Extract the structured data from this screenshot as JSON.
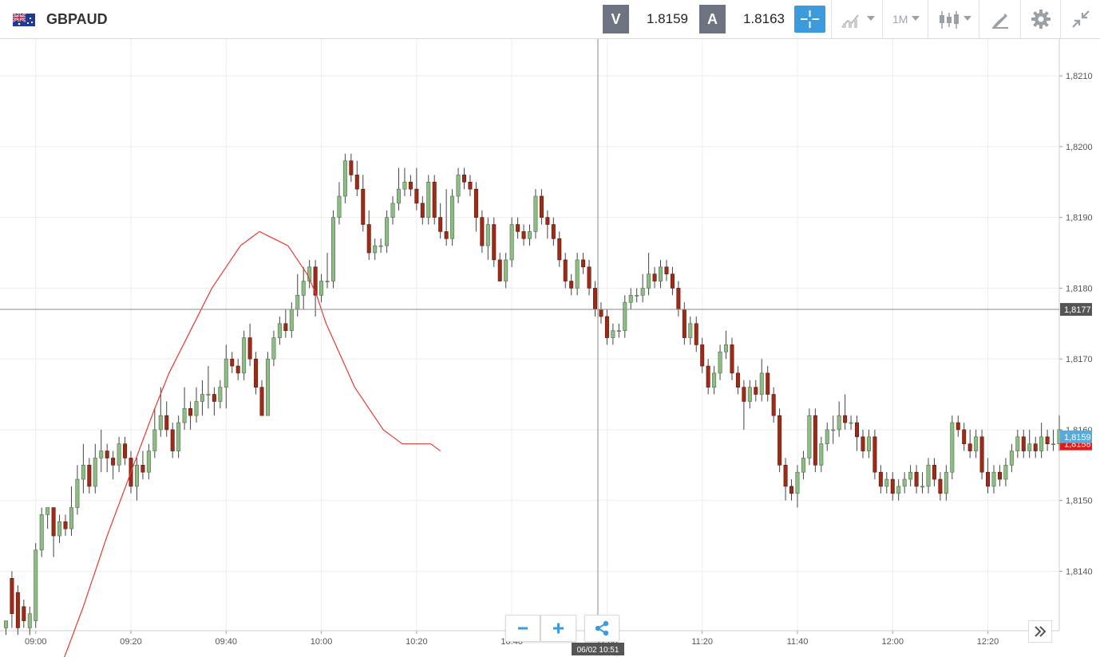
{
  "header": {
    "symbol": "GBPAUD",
    "sell_label": "V",
    "sell_price": "1.8159",
    "buy_label": "A",
    "buy_price": "1.8163",
    "timeframe": "1M"
  },
  "crosshair": {
    "price_label": "1,8177",
    "time_label": "06/02 10:51"
  },
  "chart_data": {
    "type": "candlestick",
    "symbol": "GBPAUD",
    "interval": "1 minute",
    "y_ticks": [
      "1,8140",
      "1,8150",
      "1,8160",
      "1,8170",
      "1,8180",
      "1,8190",
      "1,8200",
      "1,8210"
    ],
    "x_ticks": [
      "09:00",
      "09:20",
      "09:40",
      "10:00",
      "10:20",
      "10:40",
      "11:00",
      "11:20",
      "11:40",
      "12:00",
      "12:20"
    ],
    "ylim": [
      1.81316,
      1.82152
    ],
    "xlim_minutes": [
      -3,
      86
    ],
    "grid": true,
    "current_bid": "1,8159",
    "current_ask_marker": "1,8158",
    "colors": {
      "up": "#8dbd84",
      "down": "#9e2b17",
      "ma": "#e53935",
      "bid_tag": "#5aa9d8",
      "ask_tag": "#e01b1b",
      "cross_tag": "#555555"
    },
    "candles": [
      [
        1.8132,
        1.8133,
        1.8131,
        1.8132
      ],
      [
        1.8139,
        1.8134,
        1.814,
        1.8132
      ],
      [
        1.8137,
        1.8132,
        1.8138,
        1.8131
      ],
      [
        1.8135,
        1.8133,
        1.8136,
        1.8132
      ],
      [
        1.8132,
        1.8134,
        1.8135,
        1.8131
      ],
      [
        1.8133,
        1.8143,
        1.8144,
        1.8132
      ],
      [
        1.8143,
        1.8148,
        1.8149,
        1.8142
      ],
      [
        1.8148,
        1.8149,
        1.8149,
        1.8146
      ],
      [
        1.8149,
        1.8145,
        1.8149,
        1.8142
      ],
      [
        1.8145,
        1.8147,
        1.8148,
        1.8144
      ],
      [
        1.8147,
        1.8146,
        1.8148,
        1.8145
      ],
      [
        1.8146,
        1.8149,
        1.8152,
        1.8145
      ],
      [
        1.8149,
        1.8153,
        1.8155,
        1.8148
      ],
      [
        1.8153,
        1.8155,
        1.8158,
        1.8151
      ],
      [
        1.8155,
        1.8152,
        1.8156,
        1.8151
      ],
      [
        1.8152,
        1.8156,
        1.8158,
        1.8151
      ],
      [
        1.8156,
        1.8157,
        1.816,
        1.8154
      ],
      [
        1.8157,
        1.8156,
        1.8158,
        1.8154
      ],
      [
        1.8156,
        1.8155,
        1.8157,
        1.8153
      ],
      [
        1.8155,
        1.8158,
        1.8159,
        1.8154
      ],
      [
        1.8158,
        1.8156,
        1.8159,
        1.8155
      ],
      [
        1.8156,
        1.8152,
        1.8157,
        1.8151
      ],
      [
        1.8152,
        1.8155,
        1.8156,
        1.815
      ],
      [
        1.8155,
        1.8154,
        1.8157,
        1.8153
      ],
      [
        1.8154,
        1.8157,
        1.8158,
        1.8153
      ],
      [
        1.8157,
        1.816,
        1.8163,
        1.8156
      ],
      [
        1.816,
        1.8162,
        1.8166,
        1.8159
      ],
      [
        1.8162,
        1.816,
        1.8164,
        1.8159
      ],
      [
        1.816,
        1.8157,
        1.8161,
        1.8156
      ],
      [
        1.8157,
        1.8161,
        1.8162,
        1.8156
      ],
      [
        1.8161,
        1.8163,
        1.8166,
        1.816
      ],
      [
        1.8163,
        1.8162,
        1.8164,
        1.816
      ],
      [
        1.8162,
        1.8164,
        1.8166,
        1.8161
      ],
      [
        1.8164,
        1.8165,
        1.8167,
        1.8162
      ],
      [
        1.8165,
        1.8165,
        1.8169,
        1.8163
      ],
      [
        1.8165,
        1.8164,
        1.8166,
        1.8162
      ],
      [
        1.8164,
        1.8166,
        1.8167,
        1.8163
      ],
      [
        1.8166,
        1.817,
        1.8172,
        1.8163
      ],
      [
        1.817,
        1.8169,
        1.8171,
        1.8168
      ],
      [
        1.8169,
        1.8168,
        1.817,
        1.8167
      ],
      [
        1.8168,
        1.8173,
        1.8174,
        1.8167
      ],
      [
        1.8173,
        1.817,
        1.8175,
        1.8169
      ],
      [
        1.817,
        1.8166,
        1.8171,
        1.8165
      ],
      [
        1.8166,
        1.8162,
        1.8167,
        1.8162
      ],
      [
        1.8162,
        1.817,
        1.8171,
        1.8162
      ],
      [
        1.817,
        1.8173,
        1.8174,
        1.8169
      ],
      [
        1.8173,
        1.8175,
        1.8176,
        1.8172
      ],
      [
        1.8175,
        1.8174,
        1.8177,
        1.8173
      ],
      [
        1.8174,
        1.8177,
        1.8178,
        1.8173
      ],
      [
        1.8177,
        1.8179,
        1.8182,
        1.8176
      ],
      [
        1.8179,
        1.8181,
        1.8183,
        1.8177
      ],
      [
        1.8181,
        1.8183,
        1.8184,
        1.818
      ],
      [
        1.8183,
        1.8179,
        1.8184,
        1.8176
      ],
      [
        1.8179,
        1.8181,
        1.8182,
        1.8178
      ],
      [
        1.8181,
        1.8181,
        1.8185,
        1.818
      ],
      [
        1.8181,
        1.819,
        1.8191,
        1.818
      ],
      [
        1.819,
        1.8193,
        1.8195,
        1.8189
      ],
      [
        1.8193,
        1.8198,
        1.8199,
        1.8192
      ],
      [
        1.8198,
        1.8196,
        1.8199,
        1.8195
      ],
      [
        1.8196,
        1.8194,
        1.8198,
        1.8193
      ],
      [
        1.8194,
        1.8189,
        1.8196,
        1.8188
      ],
      [
        1.8189,
        1.8185,
        1.8191,
        1.8184
      ],
      [
        1.8185,
        1.8186,
        1.8187,
        1.8184
      ],
      [
        1.8186,
        1.8186,
        1.8187,
        1.8185
      ],
      [
        1.8186,
        1.819,
        1.8191,
        1.8185
      ],
      [
        1.819,
        1.8192,
        1.8193,
        1.8189
      ],
      [
        1.8192,
        1.8194,
        1.8197,
        1.8191
      ],
      [
        1.8194,
        1.8195,
        1.8197,
        1.8193
      ],
      [
        1.8195,
        1.8194,
        1.8196,
        1.8193
      ],
      [
        1.8194,
        1.8192,
        1.8197,
        1.8191
      ],
      [
        1.8192,
        1.819,
        1.8193,
        1.8189
      ],
      [
        1.819,
        1.8195,
        1.8196,
        1.8189
      ],
      [
        1.8195,
        1.819,
        1.8196,
        1.8189
      ],
      [
        1.819,
        1.8188,
        1.8192,
        1.8187
      ],
      [
        1.8188,
        1.8187,
        1.8194,
        1.8186
      ],
      [
        1.8187,
        1.8193,
        1.8194,
        1.8186
      ],
      [
        1.8193,
        1.8196,
        1.8197,
        1.8192
      ],
      [
        1.8196,
        1.8195,
        1.8197,
        1.8194
      ],
      [
        1.8195,
        1.8194,
        1.8196,
        1.8193
      ],
      [
        1.8194,
        1.819,
        1.8195,
        1.8188
      ],
      [
        1.819,
        1.8186,
        1.8191,
        1.8185
      ],
      [
        1.8186,
        1.8189,
        1.819,
        1.8184
      ],
      [
        1.8189,
        1.8184,
        1.819,
        1.8183
      ],
      [
        1.8184,
        1.8181,
        1.8185,
        1.8181
      ],
      [
        1.8181,
        1.8184,
        1.8185,
        1.818
      ],
      [
        1.8184,
        1.8189,
        1.819,
        1.8183
      ],
      [
        1.8189,
        1.8188,
        1.819,
        1.8187
      ],
      [
        1.8188,
        1.8187,
        1.8189,
        1.8186
      ],
      [
        1.8187,
        1.8188,
        1.8189,
        1.8186
      ],
      [
        1.8188,
        1.8193,
        1.8194,
        1.8187
      ],
      [
        1.8193,
        1.819,
        1.8194,
        1.8189
      ],
      [
        1.819,
        1.8189,
        1.8191,
        1.8187
      ],
      [
        1.8189,
        1.8187,
        1.819,
        1.8186
      ],
      [
        1.8187,
        1.8184,
        1.8188,
        1.8183
      ],
      [
        1.8184,
        1.8181,
        1.8185,
        1.818
      ],
      [
        1.8181,
        1.818,
        1.8182,
        1.8179
      ],
      [
        1.818,
        1.8184,
        1.8185,
        1.8179
      ],
      [
        1.8184,
        1.8183,
        1.8185,
        1.8182
      ],
      [
        1.8183,
        1.818,
        1.8184,
        1.8179
      ],
      [
        1.818,
        1.8177,
        1.8181,
        1.8176
      ],
      [
        1.8177,
        1.8176,
        1.8178,
        1.8175
      ],
      [
        1.8176,
        1.8173,
        1.8177,
        1.8172
      ],
      [
        1.8173,
        1.8174,
        1.8175,
        1.8172
      ],
      [
        1.8174,
        1.8174,
        1.8175,
        1.8173
      ],
      [
        1.8174,
        1.8178,
        1.8179,
        1.8173
      ],
      [
        1.8178,
        1.8179,
        1.818,
        1.8177
      ],
      [
        1.8179,
        1.8179,
        1.818,
        1.8178
      ],
      [
        1.8179,
        1.818,
        1.8182,
        1.8178
      ],
      [
        1.818,
        1.8182,
        1.8185,
        1.8179
      ],
      [
        1.8182,
        1.8181,
        1.8183,
        1.818
      ],
      [
        1.8181,
        1.8183,
        1.8184,
        1.818
      ],
      [
        1.8183,
        1.8182,
        1.8184,
        1.8181
      ],
      [
        1.8182,
        1.818,
        1.8183,
        1.8179
      ],
      [
        1.818,
        1.8177,
        1.8181,
        1.8176
      ],
      [
        1.8177,
        1.8173,
        1.8178,
        1.8172
      ],
      [
        1.8173,
        1.8175,
        1.8176,
        1.8172
      ],
      [
        1.8175,
        1.8172,
        1.8176,
        1.8171
      ],
      [
        1.8172,
        1.8169,
        1.8173,
        1.8168
      ],
      [
        1.8169,
        1.8166,
        1.817,
        1.8165
      ],
      [
        1.8166,
        1.8168,
        1.8169,
        1.8165
      ],
      [
        1.8168,
        1.8171,
        1.8172,
        1.8167
      ],
      [
        1.8171,
        1.8172,
        1.8174,
        1.817
      ],
      [
        1.8172,
        1.8168,
        1.8173,
        1.8167
      ],
      [
        1.8168,
        1.8166,
        1.8169,
        1.8165
      ],
      [
        1.8166,
        1.8164,
        1.8167,
        1.816
      ],
      [
        1.8164,
        1.8166,
        1.8167,
        1.8163
      ],
      [
        1.8166,
        1.8165,
        1.8167,
        1.8164
      ],
      [
        1.8165,
        1.8168,
        1.817,
        1.8164
      ],
      [
        1.8168,
        1.8165,
        1.8169,
        1.8164
      ],
      [
        1.8165,
        1.8162,
        1.8166,
        1.8161
      ],
      [
        1.8162,
        1.8155,
        1.8163,
        1.8154
      ],
      [
        1.8155,
        1.8152,
        1.8156,
        1.815
      ],
      [
        1.8152,
        1.8151,
        1.8153,
        1.815
      ],
      [
        1.8151,
        1.8154,
        1.8155,
        1.8149
      ],
      [
        1.8154,
        1.8156,
        1.8157,
        1.8153
      ],
      [
        1.8156,
        1.8162,
        1.8163,
        1.8155
      ],
      [
        1.8162,
        1.8155,
        1.8163,
        1.8154
      ],
      [
        1.8155,
        1.8158,
        1.8159,
        1.8154
      ],
      [
        1.8158,
        1.816,
        1.8161,
        1.8157
      ],
      [
        1.816,
        1.816,
        1.8162,
        1.8158
      ],
      [
        1.816,
        1.8162,
        1.8164,
        1.8159
      ],
      [
        1.8162,
        1.8161,
        1.8165,
        1.816
      ],
      [
        1.8161,
        1.8161,
        1.8162,
        1.816
      ],
      [
        1.8161,
        1.8159,
        1.8162,
        1.8157
      ],
      [
        1.8159,
        1.8157,
        1.816,
        1.8156
      ],
      [
        1.8157,
        1.8159,
        1.816,
        1.8156
      ],
      [
        1.8159,
        1.8154,
        1.816,
        1.8153
      ],
      [
        1.8154,
        1.8152,
        1.8155,
        1.8151
      ],
      [
        1.8152,
        1.8153,
        1.8154,
        1.8151
      ],
      [
        1.8153,
        1.8151,
        1.8154,
        1.815
      ],
      [
        1.8151,
        1.8152,
        1.8153,
        1.815
      ],
      [
        1.8152,
        1.8153,
        1.8154,
        1.8151
      ],
      [
        1.8153,
        1.8154,
        1.8155,
        1.8152
      ],
      [
        1.8154,
        1.8152,
        1.8155,
        1.8151
      ],
      [
        1.8152,
        1.8152,
        1.8154,
        1.8151
      ],
      [
        1.8152,
        1.8155,
        1.8156,
        1.8151
      ],
      [
        1.8155,
        1.8153,
        1.8156,
        1.8152
      ],
      [
        1.8153,
        1.8151,
        1.8154,
        1.815
      ],
      [
        1.8151,
        1.8154,
        1.8155,
        1.815
      ],
      [
        1.8154,
        1.8161,
        1.8162,
        1.8153
      ],
      [
        1.8161,
        1.816,
        1.8162,
        1.8159
      ],
      [
        1.816,
        1.8158,
        1.8161,
        1.8157
      ],
      [
        1.8158,
        1.8157,
        1.816,
        1.8156
      ],
      [
        1.8157,
        1.8159,
        1.816,
        1.8156
      ],
      [
        1.8159,
        1.8154,
        1.816,
        1.8153
      ],
      [
        1.8154,
        1.8152,
        1.8156,
        1.8151
      ],
      [
        1.8152,
        1.8154,
        1.8155,
        1.8151
      ],
      [
        1.8154,
        1.8153,
        1.8155,
        1.8152
      ],
      [
        1.8153,
        1.8155,
        1.8156,
        1.8152
      ],
      [
        1.8155,
        1.8157,
        1.8158,
        1.8154
      ],
      [
        1.8157,
        1.8159,
        1.816,
        1.8156
      ],
      [
        1.8159,
        1.8157,
        1.816,
        1.8156
      ],
      [
        1.8157,
        1.8158,
        1.816,
        1.8156
      ],
      [
        1.8158,
        1.8157,
        1.8159,
        1.8156
      ],
      [
        1.8157,
        1.8159,
        1.8161,
        1.8156
      ],
      [
        1.8159,
        1.8158,
        1.816,
        1.8157
      ],
      [
        1.8158,
        1.8158,
        1.816,
        1.8157
      ],
      [
        1.8158,
        1.816,
        1.8162,
        1.8157
      ],
      [
        1.816,
        1.8162,
        1.8164,
        1.8159
      ],
      [
        1.8162,
        1.8159,
        1.8163,
        1.8158
      ],
      [
        1.8159,
        1.8161,
        1.8162,
        1.8158
      ],
      [
        1.8161,
        1.816,
        1.8162,
        1.8159
      ],
      [
        1.816,
        1.8161,
        1.8163,
        1.8159
      ],
      [
        1.8161,
        1.816,
        1.8162,
        1.8159
      ],
      [
        1.816,
        1.8163,
        1.8164,
        1.8159
      ],
      [
        1.8163,
        1.8166,
        1.8167,
        1.8162
      ],
      [
        1.8166,
        1.8165,
        1.8167,
        1.8164
      ],
      [
        1.8165,
        1.8163,
        1.8166,
        1.8162
      ],
      [
        1.8163,
        1.8163,
        1.8165,
        1.8162
      ],
      [
        1.8163,
        1.8162,
        1.8164,
        1.8161
      ],
      [
        1.8162,
        1.8158,
        1.8163,
        1.8157
      ],
      [
        1.8158,
        1.8157,
        1.8159,
        1.8156
      ],
      [
        1.8157,
        1.816,
        1.8161,
        1.8156
      ],
      [
        1.816,
        1.8159,
        1.8162,
        1.8158
      ],
      [
        1.8159,
        1.8161,
        1.8163,
        1.8158
      ],
      [
        1.8161,
        1.8165,
        1.8166,
        1.816
      ],
      [
        1.8165,
        1.8162,
        1.8166,
        1.8161
      ],
      [
        1.8162,
        1.8152,
        1.8163,
        1.8151
      ],
      [
        1.8152,
        1.815,
        1.8153,
        1.8149
      ],
      [
        1.815,
        1.8151,
        1.8152,
        1.815
      ],
      [
        1.8151,
        1.815,
        1.8152,
        1.8149
      ],
      [
        1.815,
        1.8152,
        1.8155,
        1.8149
      ],
      [
        1.8152,
        1.8154,
        1.8155,
        1.8151
      ],
      [
        1.8154,
        1.8157,
        1.8158,
        1.8153
      ],
      [
        1.8157,
        1.8158,
        1.816,
        1.8156
      ],
      [
        1.8158,
        1.8161,
        1.8162,
        1.8157
      ],
      [
        1.8161,
        1.8158,
        1.8162,
        1.8157
      ],
      [
        1.8158,
        1.816,
        1.8161,
        1.8157
      ],
      [
        1.816,
        1.8157,
        1.8161,
        1.8156
      ],
      [
        1.8157,
        1.816,
        1.8161,
        1.8156
      ],
      [
        1.816,
        1.8158,
        1.8161,
        1.8157
      ],
      [
        1.8158,
        1.8158,
        1.816,
        1.8157
      ],
      [
        1.8158,
        1.8159,
        1.816,
        1.8157
      ],
      [
        1.8159,
        1.8152,
        1.816,
        1.8151
      ]
    ],
    "candle_spacing_minutes": 0.5,
    "first_candle_minute": -2.5,
    "moving_average": [
      [
        5,
        1.8126
      ],
      [
        10,
        1.8135
      ],
      [
        15,
        1.8145
      ],
      [
        20,
        1.8154
      ],
      [
        25,
        1.8163
      ],
      [
        28,
        1.8168
      ],
      [
        31,
        1.8172
      ],
      [
        34,
        1.8176
      ],
      [
        37,
        1.818
      ],
      [
        40,
        1.8183
      ],
      [
        43,
        1.8186
      ],
      [
        45,
        1.8187
      ],
      [
        47,
        1.8188
      ],
      [
        50,
        1.8187
      ],
      [
        53,
        1.8186
      ],
      [
        55,
        1.8184
      ],
      [
        57,
        1.8182
      ],
      [
        59,
        1.8179
      ],
      [
        61,
        1.8175
      ],
      [
        63,
        1.8172
      ],
      [
        65,
        1.8169
      ],
      [
        67,
        1.8166
      ],
      [
        69,
        1.8164
      ],
      [
        71,
        1.8162
      ],
      [
        73,
        1.816
      ],
      [
        75,
        1.8159
      ],
      [
        77,
        1.8158
      ],
      [
        79,
        1.8158
      ],
      [
        81,
        1.8158
      ],
      [
        83,
        1.8158
      ],
      [
        85,
        1.8157
      ]
    ]
  }
}
